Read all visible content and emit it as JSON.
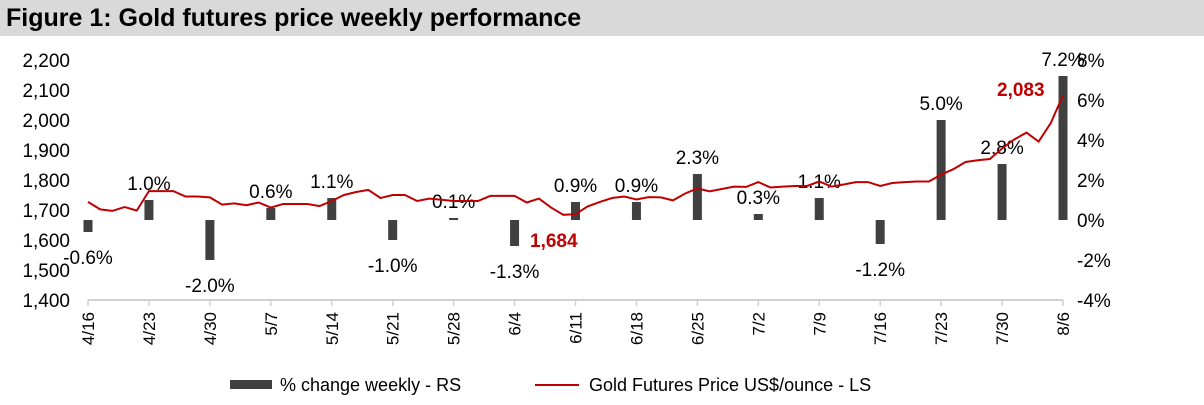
{
  "chart_data": {
    "type": "bar+line",
    "title": "Figure 1: Gold futures price weekly performance",
    "categories": [
      "4/16",
      "4/23",
      "4/30",
      "5/7",
      "5/14",
      "5/21",
      "5/28",
      "6/4",
      "6/11",
      "6/18",
      "6/25",
      "7/2",
      "7/9",
      "7/16",
      "7/23",
      "7/30",
      "8/6"
    ],
    "bar_series": {
      "name": "% change weekly - RS",
      "color": "#404040",
      "values": [
        -0.6,
        1.0,
        -2.0,
        0.6,
        1.1,
        -1.0,
        0.1,
        -1.3,
        0.9,
        0.9,
        2.3,
        0.3,
        1.1,
        -1.2,
        5.0,
        2.8,
        7.2
      ],
      "labels": [
        "-0.6%",
        "1.0%",
        "-2.0%",
        "0.6%",
        "1.1%",
        "-1.0%",
        "0.1%",
        "-1.3%",
        "0.9%",
        "0.9%",
        "2.3%",
        "0.3%",
        "1.1%",
        "-1.2%",
        "5.0%",
        "2.8%",
        "7.2%"
      ]
    },
    "line_series": {
      "name": "Gold Futures Price US$/ounce - LS",
      "color": "#c00000",
      "values": [
        1727,
        1702,
        1697,
        1710,
        1698,
        1763,
        1763,
        1763,
        1745,
        1745,
        1742,
        1718,
        1722,
        1716,
        1725,
        1708,
        1720,
        1720,
        1720,
        1713,
        1730,
        1750,
        1760,
        1767,
        1740,
        1750,
        1750,
        1730,
        1738,
        1734,
        1730,
        1730,
        1730,
        1747,
        1747,
        1747,
        1725,
        1738,
        1708,
        1684,
        1686,
        1712,
        1727,
        1740,
        1745,
        1735,
        1743,
        1742,
        1732,
        1755,
        1772,
        1762,
        1770,
        1778,
        1777,
        1793,
        1775,
        1778,
        1780,
        1780,
        1795,
        1778,
        1785,
        1793,
        1793,
        1780,
        1790,
        1793,
        1795,
        1795,
        1818,
        1836,
        1860,
        1866,
        1870,
        1905,
        1935,
        1958,
        1928,
        1990,
        2083
      ]
    },
    "annotations": [
      {
        "text": "1,684",
        "color": "#c00000"
      },
      {
        "text": "2,083",
        "color": "#c00000"
      }
    ],
    "left_axis": {
      "ylim": [
        1400,
        2200
      ],
      "ticks": [
        "1,400",
        "1,500",
        "1,600",
        "1,700",
        "1,800",
        "1,900",
        "2,000",
        "2,100",
        "2,200"
      ]
    },
    "right_axis": {
      "ylim": [
        -4,
        8
      ],
      "ticks": [
        "-4%",
        "-2%",
        "0%",
        "2%",
        "4%",
        "6%",
        "8%"
      ]
    },
    "legend_position": "bottom",
    "grid": false
  }
}
